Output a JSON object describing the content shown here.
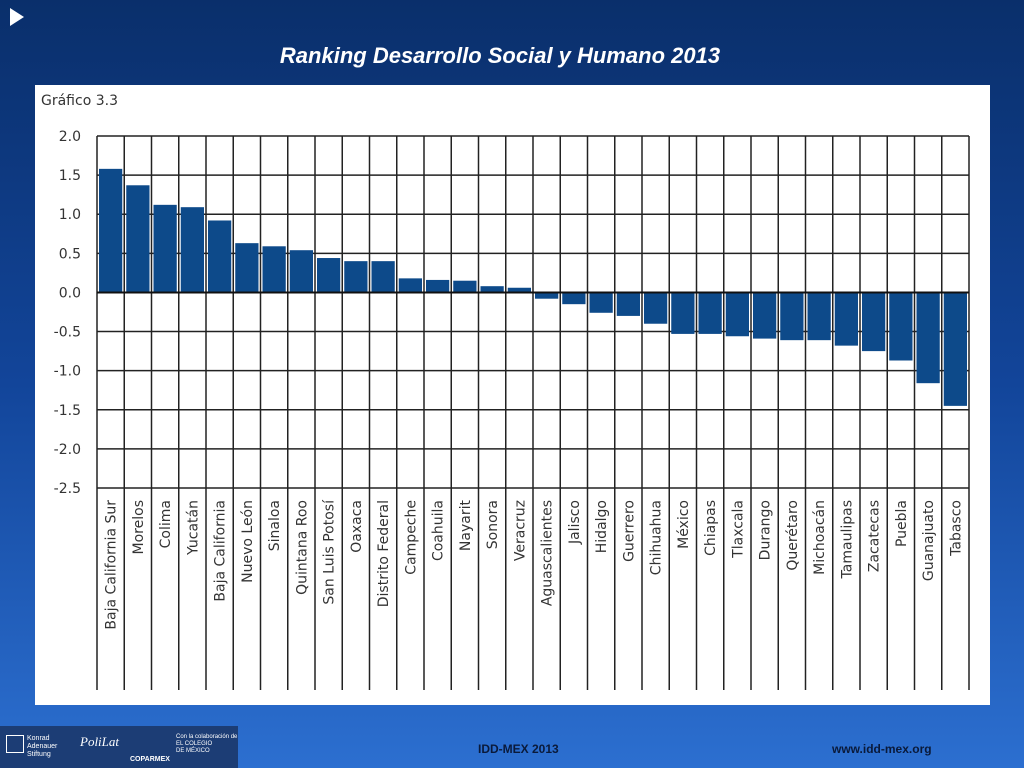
{
  "slide": {
    "title": "Ranking Desarrollo Social y Humano 2013",
    "footer_left": "IDD-MEX  2013",
    "footer_right": "www.idd-mex.org"
  },
  "logos": {
    "kas_line1": "Konrad",
    "kas_line2": "Adenauer",
    "kas_line3": "Stiftung",
    "polilat": "PoliLat",
    "coparmex": "COPARMEX",
    "colmex_line1": "Con la colaboración de",
    "colmex_line2": "EL COLEGIO",
    "colmex_line3": "DE MÉXICO"
  },
  "colors": {
    "bar": "#0d4a8a",
    "background_top": "#0a2f6b",
    "background_bottom": "#2c6fd0"
  },
  "chart_data": {
    "type": "bar",
    "title": "Gráfico 3.3",
    "xlabel": "",
    "ylabel": "",
    "ylim": [
      -2.5,
      2.0
    ],
    "yticks": [
      2.0,
      1.5,
      1.0,
      0.5,
      0.0,
      -0.5,
      -1.0,
      -1.5,
      -2.0,
      -2.5
    ],
    "ytick_labels": [
      "2.0",
      "1.5",
      "1.0",
      "0.5",
      "0.0",
      "-0.5",
      "-1.0",
      "-1.5",
      "-2.0",
      "-2.5"
    ],
    "grid": true,
    "categories": [
      "Baja California Sur",
      "Morelos",
      "Colima",
      "Yucatán",
      "Baja California",
      "Nuevo León",
      "Sinaloa",
      "Quintana Roo",
      "San Luis Potosí",
      "Oaxaca",
      "Distrito Federal",
      "Campeche",
      "Coahuila",
      "Nayarit",
      "Sonora",
      "Veracruz",
      "Aguascalientes",
      "Jalisco",
      "Hidalgo",
      "Guerrero",
      "Chihuahua",
      "México",
      "Chiapas",
      "Tlaxcala",
      "Durango",
      "Querétaro",
      "Michoacán",
      "Tamaulipas",
      "Zacatecas",
      "Puebla",
      "Guanajuato",
      "Tabasco"
    ],
    "values": [
      1.58,
      1.37,
      1.12,
      1.09,
      0.92,
      0.63,
      0.59,
      0.54,
      0.44,
      0.4,
      0.4,
      0.18,
      0.16,
      0.15,
      0.08,
      0.06,
      -0.08,
      -0.15,
      -0.26,
      -0.3,
      -0.4,
      -0.53,
      -0.53,
      -0.56,
      -0.59,
      -0.61,
      -0.61,
      -0.68,
      -0.75,
      -0.87,
      -1.16,
      -1.45
    ]
  }
}
